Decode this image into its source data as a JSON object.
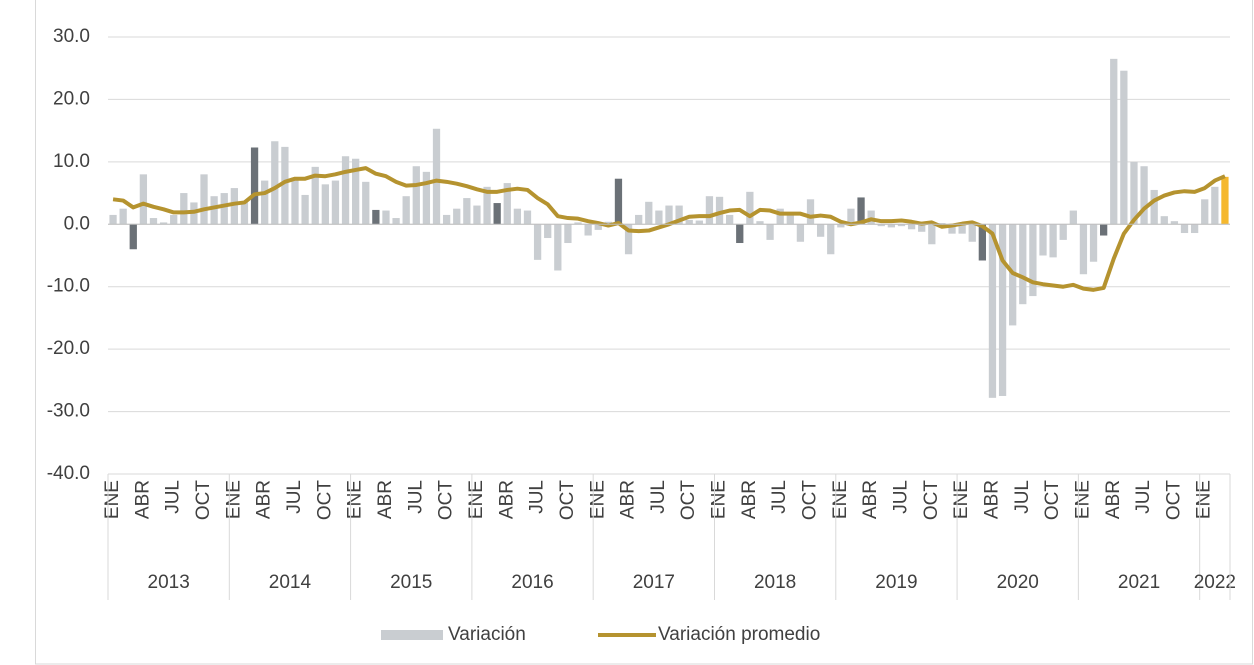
{
  "chart_data": {
    "type": "bar-line",
    "categories": [
      "ENE",
      null,
      null,
      "ABR",
      null,
      null,
      "JUL",
      null,
      null,
      "OCT",
      null,
      null,
      "ENE",
      null,
      null,
      "ABR",
      null,
      null,
      "JUL",
      null,
      null,
      "OCT",
      null,
      null,
      "ENE",
      null,
      null,
      "ABR",
      null,
      null,
      "JUL",
      null,
      null,
      "OCT",
      null,
      null,
      "ENE",
      null,
      null,
      "ABR",
      null,
      null,
      "JUL",
      null,
      null,
      "OCT",
      null,
      null,
      "ENE",
      null,
      null,
      "ABR",
      null,
      null,
      "JUL",
      null,
      null,
      "OCT",
      null,
      null,
      "ENE",
      null,
      null,
      "ABR",
      null,
      null,
      "JUL",
      null,
      null,
      "OCT",
      null,
      null,
      "ENE",
      null,
      null,
      "ABR",
      null,
      null,
      "JUL",
      null,
      null,
      "OCT",
      null,
      null,
      "ENE",
      null,
      null,
      "ABR",
      null,
      null,
      "JUL",
      null,
      null,
      "OCT",
      null,
      null,
      "ENE",
      null,
      null,
      "ABR",
      null,
      null,
      "JUL",
      null,
      null,
      "OCT",
      null,
      null,
      "ENE",
      null,
      null
    ],
    "years": [
      "2013",
      "2014",
      "2015",
      "2016",
      "2017",
      "2018",
      "2019",
      "2020",
      "2021",
      "2022"
    ],
    "series": [
      {
        "name": "Variación",
        "kind": "bar",
        "color": "#c9cdd1",
        "values": [
          1.5,
          2.5,
          -4.0,
          8.0,
          1.0,
          0.3,
          1.5,
          5.0,
          3.5,
          8.0,
          4.5,
          5.0,
          5.8,
          3.5,
          12.3,
          7.0,
          13.3,
          12.4,
          7.5,
          4.7,
          9.2,
          6.4,
          7.0,
          10.9,
          10.5,
          6.8,
          2.3,
          2.2,
          1.0,
          4.5,
          9.3,
          8.4,
          15.3,
          1.5,
          2.5,
          4.2,
          3.0,
          6.0,
          3.4,
          6.6,
          2.5,
          2.2,
          -5.7,
          -2.2,
          -7.4,
          -3.0,
          0.3,
          -1.8,
          -0.9,
          0.4,
          7.3,
          -4.8,
          1.5,
          3.6,
          2.2,
          3.0,
          3.0,
          0.7,
          0.6,
          4.5,
          4.4,
          1.5,
          -3.0,
          5.2,
          0.5,
          -2.5,
          2.5,
          1.5,
          -2.8,
          4.0,
          -2.0,
          -4.8,
          -0.5,
          2.5,
          4.3,
          2.2,
          -0.3,
          -0.5,
          -0.3,
          -0.8,
          -1.2,
          -3.2,
          0.2,
          -1.5,
          -1.5,
          -2.8,
          -5.8,
          -27.8,
          -27.5,
          -16.2,
          -12.8,
          -11.5,
          -5.0,
          -5.3,
          -2.5,
          2.2,
          -8.0,
          -6.0,
          -1.8,
          26.5,
          24.6,
          10.0,
          9.3,
          5.5,
          1.3,
          0.5,
          -1.4,
          -1.4,
          4.0,
          6.0,
          7.6
        ],
        "colors": [
          "#c9cdd1",
          "#c9cdd1",
          "#6b7177",
          "#c9cdd1",
          "#c9cdd1",
          "#c9cdd1",
          "#c9cdd1",
          "#c9cdd1",
          "#c9cdd1",
          "#c9cdd1",
          "#c9cdd1",
          "#c9cdd1",
          "#c9cdd1",
          "#c9cdd1",
          "#6b7177",
          "#c9cdd1",
          "#c9cdd1",
          "#c9cdd1",
          "#c9cdd1",
          "#c9cdd1",
          "#c9cdd1",
          "#c9cdd1",
          "#c9cdd1",
          "#c9cdd1",
          "#c9cdd1",
          "#c9cdd1",
          "#6b7177",
          "#c9cdd1",
          "#c9cdd1",
          "#c9cdd1",
          "#c9cdd1",
          "#c9cdd1",
          "#c9cdd1",
          "#c9cdd1",
          "#c9cdd1",
          "#c9cdd1",
          "#c9cdd1",
          "#c9cdd1",
          "#6b7177",
          "#c9cdd1",
          "#c9cdd1",
          "#c9cdd1",
          "#c9cdd1",
          "#c9cdd1",
          "#c9cdd1",
          "#c9cdd1",
          "#c9cdd1",
          "#c9cdd1",
          "#c9cdd1",
          "#c9cdd1",
          "#6b7177",
          "#c9cdd1",
          "#c9cdd1",
          "#c9cdd1",
          "#c9cdd1",
          "#c9cdd1",
          "#c9cdd1",
          "#c9cdd1",
          "#c9cdd1",
          "#c9cdd1",
          "#c9cdd1",
          "#c9cdd1",
          "#6b7177",
          "#c9cdd1",
          "#c9cdd1",
          "#c9cdd1",
          "#c9cdd1",
          "#c9cdd1",
          "#c9cdd1",
          "#c9cdd1",
          "#c9cdd1",
          "#c9cdd1",
          "#c9cdd1",
          "#c9cdd1",
          "#6b7177",
          "#c9cdd1",
          "#c9cdd1",
          "#c9cdd1",
          "#c9cdd1",
          "#c9cdd1",
          "#c9cdd1",
          "#c9cdd1",
          "#c9cdd1",
          "#c9cdd1",
          "#c9cdd1",
          "#c9cdd1",
          "#6b7177",
          "#c9cdd1",
          "#c9cdd1",
          "#c9cdd1",
          "#c9cdd1",
          "#c9cdd1",
          "#c9cdd1",
          "#c9cdd1",
          "#c9cdd1",
          "#c9cdd1",
          "#c9cdd1",
          "#c9cdd1",
          "#6b7177",
          "#c9cdd1",
          "#c9cdd1",
          "#c9cdd1",
          "#c9cdd1",
          "#c9cdd1",
          "#c9cdd1",
          "#c9cdd1",
          "#c9cdd1",
          "#c9cdd1",
          "#c9cdd1",
          "#c9cdd1",
          "#f5b82e"
        ]
      },
      {
        "name": "Variación promedio",
        "kind": "line",
        "color": "#b5932f",
        "values": [
          4.0,
          3.8,
          2.7,
          3.3,
          2.8,
          2.4,
          1.9,
          1.9,
          2.0,
          2.4,
          2.7,
          3.0,
          3.3,
          3.5,
          4.8,
          5.0,
          5.8,
          6.8,
          7.3,
          7.3,
          7.8,
          7.7,
          8.0,
          8.4,
          8.7,
          9.0,
          8.1,
          7.7,
          6.8,
          6.2,
          6.3,
          6.6,
          7.0,
          6.8,
          6.5,
          6.1,
          5.6,
          5.2,
          5.2,
          5.5,
          5.7,
          5.5,
          4.2,
          3.2,
          1.3,
          1.0,
          0.9,
          0.5,
          0.2,
          -0.2,
          0.2,
          -1.0,
          -1.1,
          -1.0,
          -0.5,
          0.0,
          0.6,
          1.2,
          1.3,
          1.3,
          1.8,
          2.2,
          2.3,
          1.3,
          2.3,
          2.2,
          1.7,
          1.7,
          1.7,
          1.2,
          1.4,
          1.2,
          0.4,
          0.0,
          0.3,
          0.8,
          0.5,
          0.5,
          0.6,
          0.4,
          0.1,
          0.3,
          -0.4,
          -0.2,
          0.1,
          0.3,
          -0.3,
          -1.5,
          -5.8,
          -7.8,
          -8.5,
          -9.3,
          -9.6,
          -9.8,
          -10.0,
          -9.7,
          -10.3,
          -10.5,
          -10.2,
          -5.5,
          -1.5,
          0.7,
          2.5,
          3.8,
          4.6,
          5.1,
          5.3,
          5.2,
          5.8,
          7.0,
          7.7
        ]
      }
    ],
    "ylim": [
      -40,
      30
    ],
    "yticks": [
      {
        "value": -40,
        "label": "-40.0"
      },
      {
        "value": -30,
        "label": "-30.0"
      },
      {
        "value": -20,
        "label": "-20.0"
      },
      {
        "value": -10,
        "label": "-10.0"
      },
      {
        "value": 0,
        "label": "0.0"
      },
      {
        "value": 10,
        "label": "10.0"
      },
      {
        "value": 20,
        "label": "20.0"
      },
      {
        "value": 30,
        "label": "30.0"
      }
    ],
    "grid": true,
    "legend": "bottom"
  }
}
